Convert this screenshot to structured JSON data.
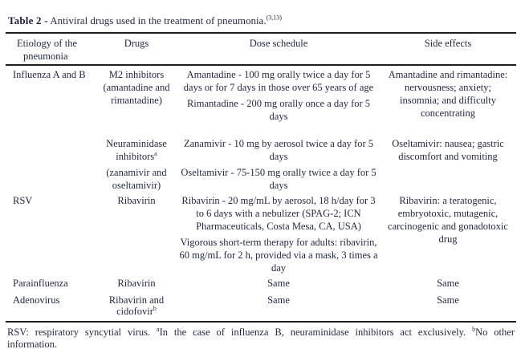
{
  "colors": {
    "text": "#232a45",
    "rule": "#1d1d1f",
    "background": "#ffffff"
  },
  "title": {
    "label": "Table 2 -",
    "text": " Antiviral drugs used in the treatment of pneumonia.",
    "reference": "(3,13)"
  },
  "header": {
    "etiology_line1": "Etiology of the",
    "etiology_line2": "pneumonia",
    "drugs": "Drugs",
    "dose": "Dose schedule",
    "side_effects": "Side effects"
  },
  "rows": {
    "influenza": {
      "etiology": "Influenza A and B",
      "m2": {
        "drug": "M2 inhibitors (amantadine and rimantadine)",
        "dose1": "Amantadine - 100 mg orally twice a day for 5 days or for 7 days in those over 65 years of age",
        "dose2": "Rimantadine - 200 mg orally once a day for 5 days",
        "side": "Amantadine and rimantadine: nervousness; anxiety; insomnia; and difficulty concentrating"
      },
      "neuraminidase": {
        "drug": "Neuraminidase inhibitors",
        "drug_sup": "a",
        "drug2": "(zanamivir and oseltamivir)",
        "dose1": "Zanamivir - 10 mg by aerosol twice a day for 5 days",
        "dose2": "Oseltamivir - 75-150 mg orally twice a day for 5 days",
        "side": "Oseltamivir: nausea; gastric discomfort and vomiting"
      }
    },
    "rsv": {
      "etiology": "RSV",
      "drug": "Ribavirin",
      "dose1": "Ribavirin - 20 mg/mL by aerosol, 18 h/day for 3 to 6 days with a nebulizer (SPAG-2; ICN Pharmaceuticals, Costa Mesa, CA, USA)",
      "dose2": "Vigorous short-term therapy for adults: ribavirin, 60 mg/mL for 2 h, provided via a mask, 3 times a day",
      "side": "Ribavirin: a teratogenic, embryotoxic, mutagenic, carcinogenic and gonadotoxic drug"
    },
    "parainfluenza": {
      "etiology": "Parainfluenza",
      "drug": "Ribavirin",
      "dose": "Same",
      "side": "Same"
    },
    "adenovirus": {
      "etiology": "Adenovirus",
      "drug": "Ribavirin and cidofovir",
      "drug_sup": "b",
      "dose": "Same",
      "side": "Same"
    }
  },
  "footnote": {
    "part1": "RSV: respiratory syncytial virus. ",
    "sup_a": "a",
    "part2": "In the case of influenza B, neuraminidase inhibitors act exclusively. ",
    "sup_b": "b",
    "part3": "No other information."
  }
}
